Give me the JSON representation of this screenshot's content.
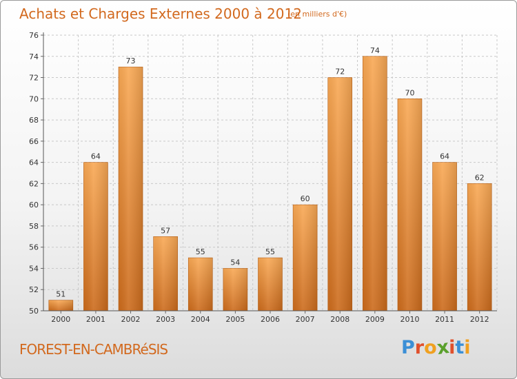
{
  "chart_data": {
    "type": "bar",
    "title": "Achats et Charges Externes 2000 à 2012",
    "subtitle": "(en milliers d'€)",
    "categories": [
      "2000",
      "2001",
      "2002",
      "2003",
      "2004",
      "2005",
      "2006",
      "2007",
      "2008",
      "2009",
      "2010",
      "2011",
      "2012"
    ],
    "values": [
      51,
      64,
      73,
      57,
      55,
      54,
      55,
      60,
      72,
      74,
      70,
      64,
      62
    ],
    "ylim": [
      50,
      76
    ],
    "yticks": [
      50,
      52,
      54,
      56,
      58,
      60,
      62,
      64,
      66,
      68,
      70,
      72,
      74,
      76
    ],
    "xlabel": "",
    "ylabel": "",
    "grid": true,
    "bar_color": "#e8862f",
    "bar_color_light": "#f7a452",
    "bar_color_dark": "#c9691a"
  },
  "footer": {
    "place": "FOREST-EN-CAMBRéSIS",
    "logo_letters": [
      "P",
      "r",
      "o",
      "x",
      "i",
      "t",
      "i"
    ],
    "logo_colors": [
      "#3b8fd6",
      "#e0502c",
      "#f0a020",
      "#5aa02c",
      "#e0502c",
      "#3b8fd6",
      "#f0a020"
    ]
  },
  "colors": {
    "accent_text": "#d2691e",
    "grid": "#c8c8c8",
    "axis": "#333333"
  }
}
